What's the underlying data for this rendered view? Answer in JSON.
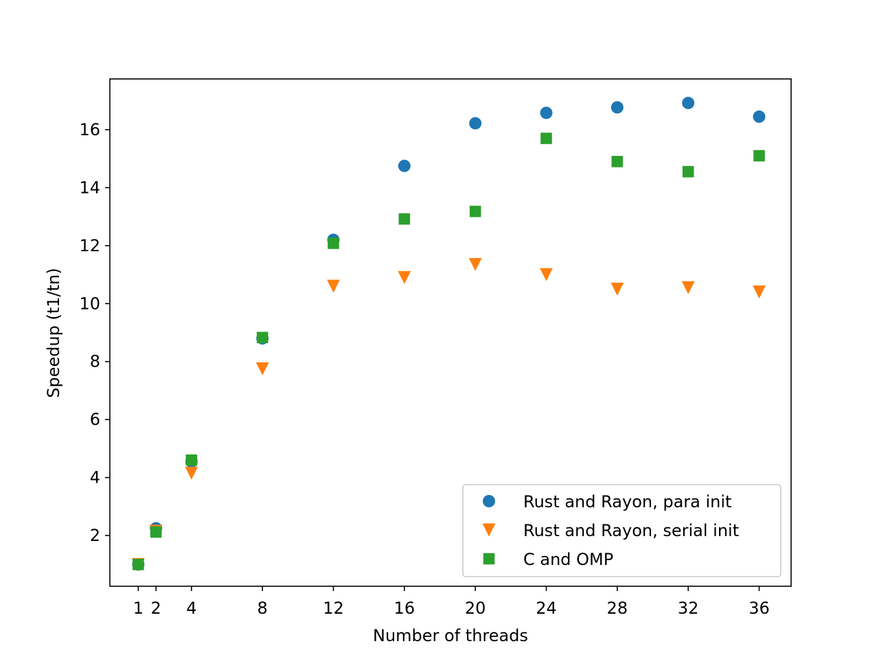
{
  "chart_data": {
    "type": "scatter",
    "title": "",
    "xlabel": "Number of threads",
    "ylabel": "Speedup (t1/tn)",
    "xlim": [
      -0.6,
      37.8
    ],
    "ylim": [
      0.25,
      17.75
    ],
    "xticks": [
      1,
      2,
      4,
      8,
      12,
      16,
      20,
      24,
      28,
      32,
      36
    ],
    "yticks": [
      2,
      4,
      6,
      8,
      10,
      12,
      14,
      16
    ],
    "grid": false,
    "legend_position": "lower right",
    "x": [
      1,
      2,
      4,
      8,
      12,
      16,
      20,
      24,
      28,
      32,
      36
    ],
    "series": [
      {
        "name": "Rust and Rayon, para init",
        "marker": "circle",
        "color": "#1f77b4",
        "values": [
          1.0,
          2.25,
          4.55,
          8.8,
          12.2,
          14.75,
          16.22,
          16.58,
          16.77,
          16.92,
          16.45
        ]
      },
      {
        "name": "Rust and Rayon, serial init",
        "marker": "triangle-down",
        "color": "#ff7f0e",
        "values": [
          1.0,
          2.15,
          4.15,
          7.75,
          10.6,
          10.9,
          11.35,
          11.0,
          10.5,
          10.55,
          10.4
        ]
      },
      {
        "name": "C and OMP",
        "marker": "square",
        "color": "#2ca02c",
        "values": [
          1.0,
          2.12,
          4.6,
          8.83,
          12.08,
          12.92,
          13.18,
          15.7,
          14.9,
          14.55,
          15.1
        ]
      }
    ]
  }
}
